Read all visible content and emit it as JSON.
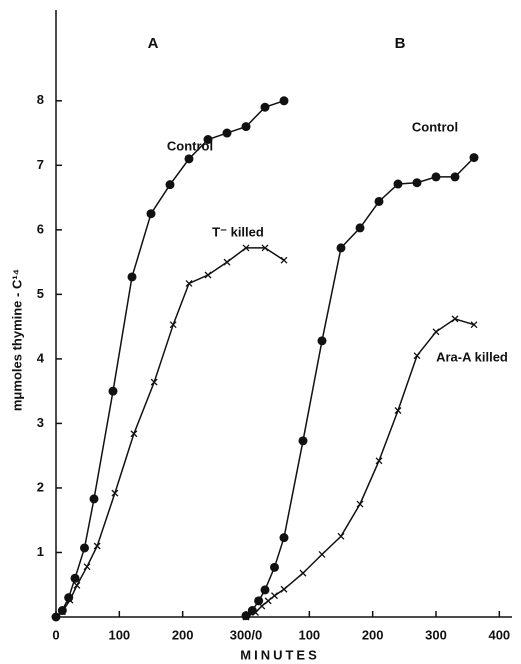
{
  "chart_data": [
    {
      "type": "scatter",
      "title": "A",
      "xlabel": "MINUTES",
      "ylabel": "mμmoles thymine - C¹⁴",
      "xlim": [
        0,
        720
      ],
      "xticks": [
        0,
        100,
        200,
        {
          "value": 300,
          "label": "300/0"
        }
      ],
      "ylim": [
        0,
        9.5
      ],
      "yticks": [
        1,
        2,
        3,
        4,
        5,
        6,
        7,
        8
      ],
      "series": [
        {
          "name": "Control",
          "marker": "dot",
          "color": "#111111",
          "x": [
            0,
            10,
            20,
            30,
            45,
            60,
            90,
            120,
            150,
            180,
            210,
            240,
            270,
            300,
            330,
            360
          ],
          "values": [
            0,
            0.1,
            0.3,
            0.6,
            1.07,
            1.83,
            3.5,
            5.27,
            6.25,
            6.7,
            7.1,
            7.4,
            7.5,
            7.6,
            7.9,
            8.0
          ]
        },
        {
          "name": "T⁻ killed",
          "marker": "cross",
          "color": "#111111",
          "x": [
            0,
            10,
            22,
            33,
            49,
            65,
            93,
            123,
            155,
            185,
            210,
            240,
            270,
            300,
            330,
            360
          ],
          "values": [
            0,
            0.08,
            0.26,
            0.49,
            0.78,
            1.1,
            1.92,
            2.84,
            3.64,
            4.53,
            5.17,
            5.3,
            5.5,
            5.72,
            5.72,
            5.53
          ]
        }
      ]
    },
    {
      "type": "scatter",
      "title": "B",
      "xlim": [
        -300,
        420
      ],
      "xticks": [
        100,
        200,
        300,
        400
      ],
      "ylim": [
        0,
        9.5
      ],
      "series": [
        {
          "name": "Control",
          "marker": "dot",
          "color": "#111111",
          "x": [
            0,
            10,
            20,
            30,
            45,
            60,
            90,
            120,
            150,
            180,
            210,
            240,
            270,
            300,
            330,
            360
          ],
          "values": [
            0.02,
            0.1,
            0.25,
            0.42,
            0.77,
            1.23,
            2.73,
            4.28,
            5.72,
            6.03,
            6.44,
            6.71,
            6.73,
            6.82,
            6.82,
            7.12
          ]
        },
        {
          "name": "Ara-A killed",
          "marker": "cross",
          "color": "#111111",
          "x": [
            0,
            15,
            25,
            35,
            45,
            60,
            90,
            120,
            150,
            180,
            210,
            240,
            270,
            300,
            330,
            360
          ],
          "values": [
            0,
            0.07,
            0.17,
            0.25,
            0.33,
            0.43,
            0.68,
            0.97,
            1.25,
            1.75,
            2.42,
            3.2,
            4.05,
            4.42,
            4.62,
            4.53
          ]
        }
      ]
    }
  ]
}
